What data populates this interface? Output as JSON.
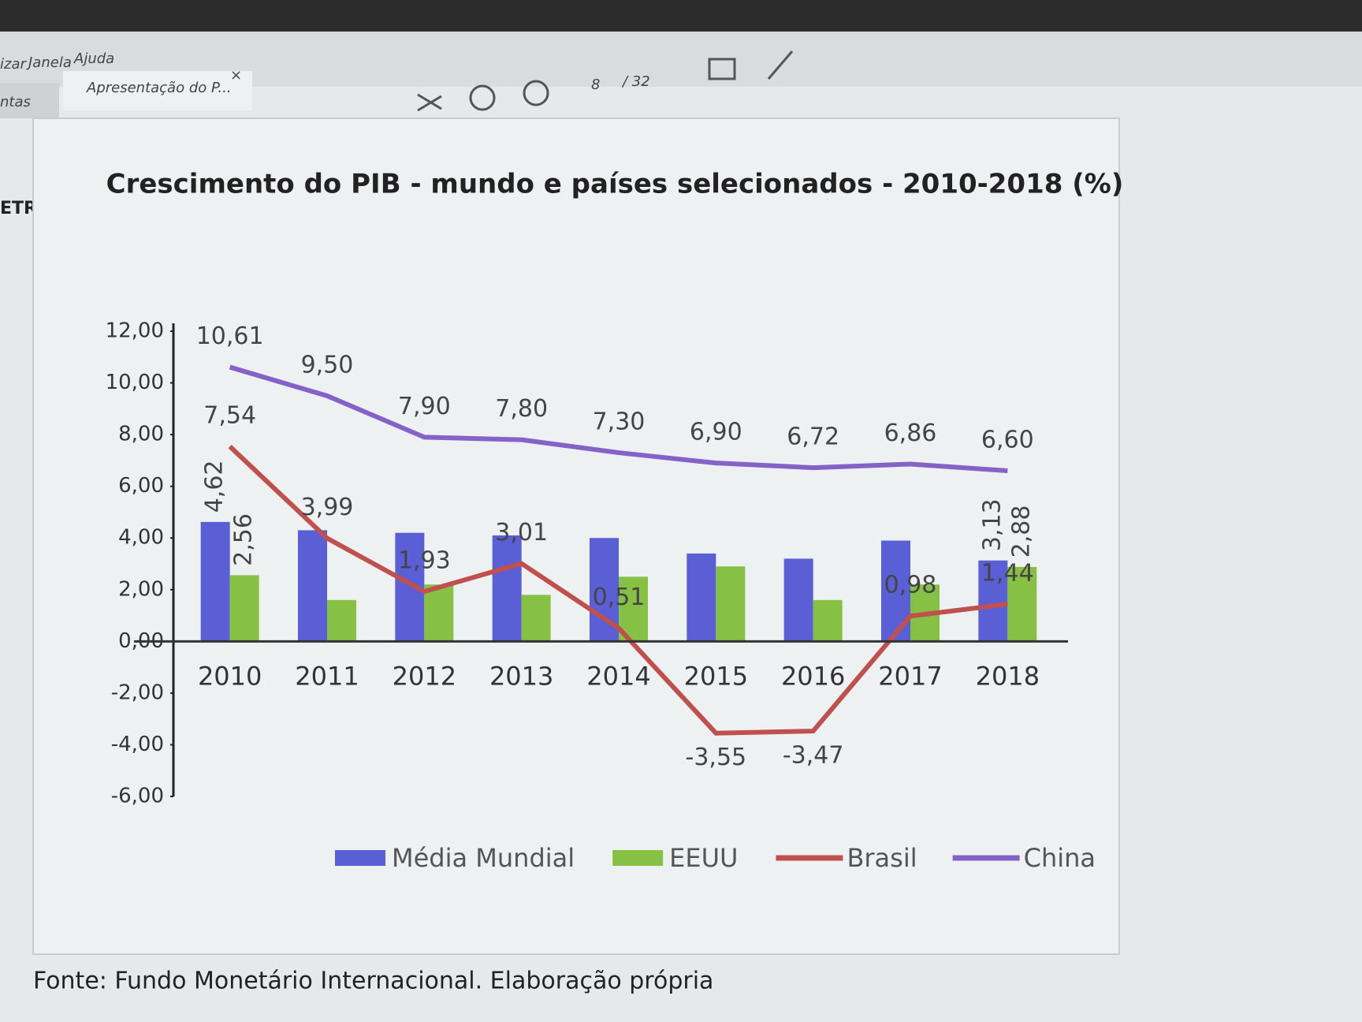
{
  "ui": {
    "menu": [
      "izar",
      "Janela",
      "Ajuda"
    ],
    "tabs": [
      "ntas",
      "Apresentação do P..."
    ],
    "close": "×",
    "page": "8",
    "page_total": "/ 32",
    "logo": "ETR S"
  },
  "chart_data": {
    "type": "bar",
    "title": "Crescimento do PIB - mundo e países selecionados - 2010-2018 (%)",
    "categories": [
      "2010",
      "2011",
      "2012",
      "2013",
      "2014",
      "2015",
      "2016",
      "2017",
      "2018"
    ],
    "series": [
      {
        "name": "Média Mundial",
        "type": "bar",
        "color": "#5b5fd6",
        "values": [
          4.62,
          4.3,
          4.2,
          4.1,
          4.0,
          3.4,
          3.2,
          3.9,
          3.13
        ],
        "value_labels": [
          "4,62",
          null,
          null,
          null,
          null,
          null,
          null,
          null,
          "3,13"
        ]
      },
      {
        "name": "EEUU",
        "type": "bar",
        "color": "#86c044",
        "values": [
          2.56,
          1.6,
          2.2,
          1.8,
          2.5,
          2.9,
          1.6,
          2.2,
          2.88
        ],
        "value_labels": [
          "2,56",
          null,
          null,
          null,
          null,
          null,
          null,
          null,
          "2,88"
        ]
      },
      {
        "name": "Brasil",
        "type": "line",
        "color": "#c0504d",
        "values": [
          7.54,
          3.99,
          1.93,
          3.01,
          0.51,
          -3.55,
          -3.47,
          0.98,
          1.44
        ],
        "value_labels": [
          "7,54",
          "3,99",
          "1,93",
          "3,01",
          "0,51",
          "-3,55",
          "-3,47",
          "0,98",
          "1,44"
        ]
      },
      {
        "name": "China",
        "type": "line",
        "color": "#8462c8",
        "values": [
          10.61,
          9.5,
          7.9,
          7.8,
          7.3,
          6.9,
          6.72,
          6.86,
          6.6
        ],
        "value_labels": [
          "10,61",
          "9,50",
          "7,90",
          "7,80",
          "7,30",
          "6,90",
          "6,72",
          "6,86",
          "6,60"
        ]
      }
    ],
    "ylim": [
      -6,
      12
    ],
    "yticks": [
      {
        "value": -6,
        "label": "-6,00"
      },
      {
        "value": -4,
        "label": "-4,00"
      },
      {
        "value": -2,
        "label": "-2,00"
      },
      {
        "value": 0,
        "label": "0,00"
      },
      {
        "value": 2,
        "label": "2,00"
      },
      {
        "value": 4,
        "label": "4,00"
      },
      {
        "value": 6,
        "label": "6,00"
      },
      {
        "value": 8,
        "label": "8,00"
      },
      {
        "value": 10,
        "label": "10,00"
      },
      {
        "value": 12,
        "label": "12,00"
      }
    ],
    "grid": false
  },
  "slide": {
    "source": "Fonte: Fundo Monetário Internacional. Elaboração própria"
  }
}
